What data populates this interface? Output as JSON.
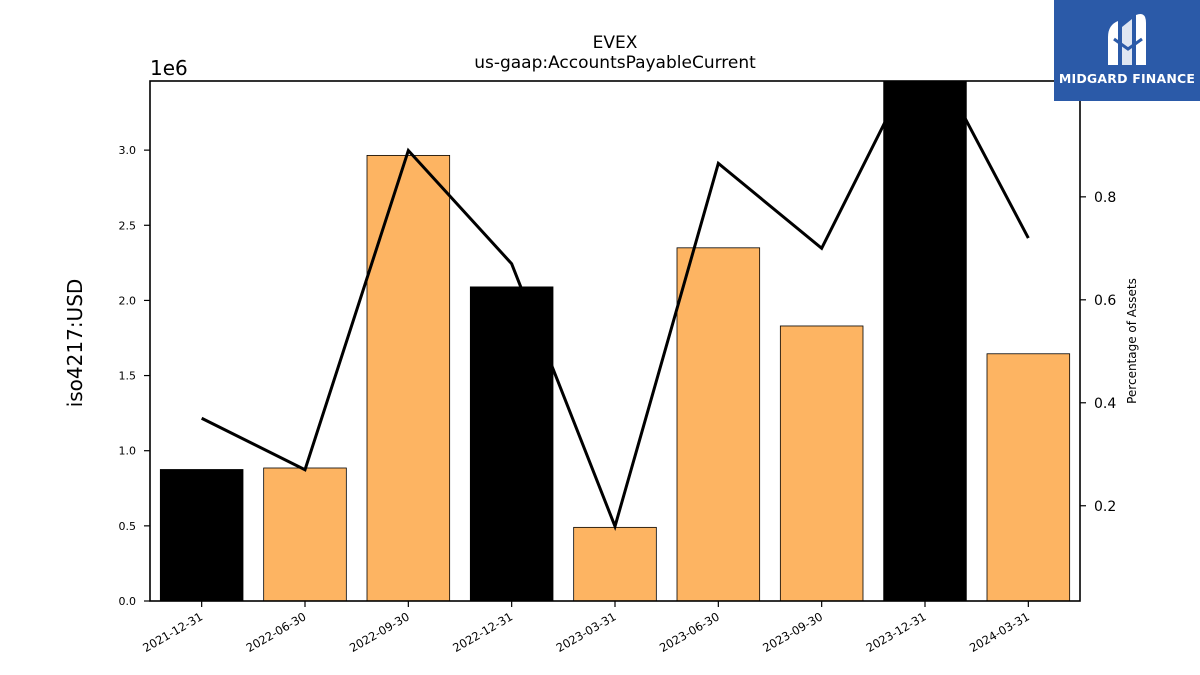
{
  "chart_data": {
    "type": "bar",
    "title": "EVEX",
    "subtitle": "us-gaap:AccountsPayableCurrent",
    "ylabel": "iso4217:USD",
    "y_offset_label": "1e6",
    "y2label": "Percentage of Assets",
    "categories": [
      "2021-12-31",
      "2022-06-30",
      "2022-09-30",
      "2022-12-31",
      "2023-03-31",
      "2023-06-30",
      "2023-09-30",
      "2023-12-31",
      "2024-03-31"
    ],
    "series": [
      {
        "type": "bar",
        "axis": "left",
        "values": [
          875000,
          885000,
          2965000,
          2090000,
          490000,
          2350000,
          1830000,
          3460000,
          1645000
        ],
        "colors": [
          "#000000",
          "#fdb462",
          "#fdb462",
          "#000000",
          "#fdb462",
          "#fdb462",
          "#fdb462",
          "#000000",
          "#fdb462"
        ]
      },
      {
        "type": "line",
        "axis": "right",
        "color": "#000000",
        "values": [
          0.37,
          0.27,
          0.89,
          0.67,
          0.16,
          0.865,
          0.7,
          1.1,
          0.72
        ]
      }
    ],
    "ylim": [
      0,
      3460000
    ],
    "y_ticks": [
      0,
      500000,
      1000000,
      1500000,
      2000000,
      2500000,
      3000000
    ],
    "y_tick_labels": [
      "0.0",
      "0.5",
      "1.0",
      "1.5",
      "2.0",
      "2.5",
      "3.0"
    ],
    "y2lim": [
      0.015,
      1.025
    ],
    "y2_ticks": [
      0.2,
      0.4,
      0.6,
      0.8,
      1.0
    ],
    "y2_tick_labels": [
      "0.2",
      "0.4",
      "0.6",
      "0.8",
      "1.0"
    ],
    "grid": false
  },
  "logo": {
    "text": "MIDGARD FINANCE",
    "bg": "#2b5aa8"
  }
}
